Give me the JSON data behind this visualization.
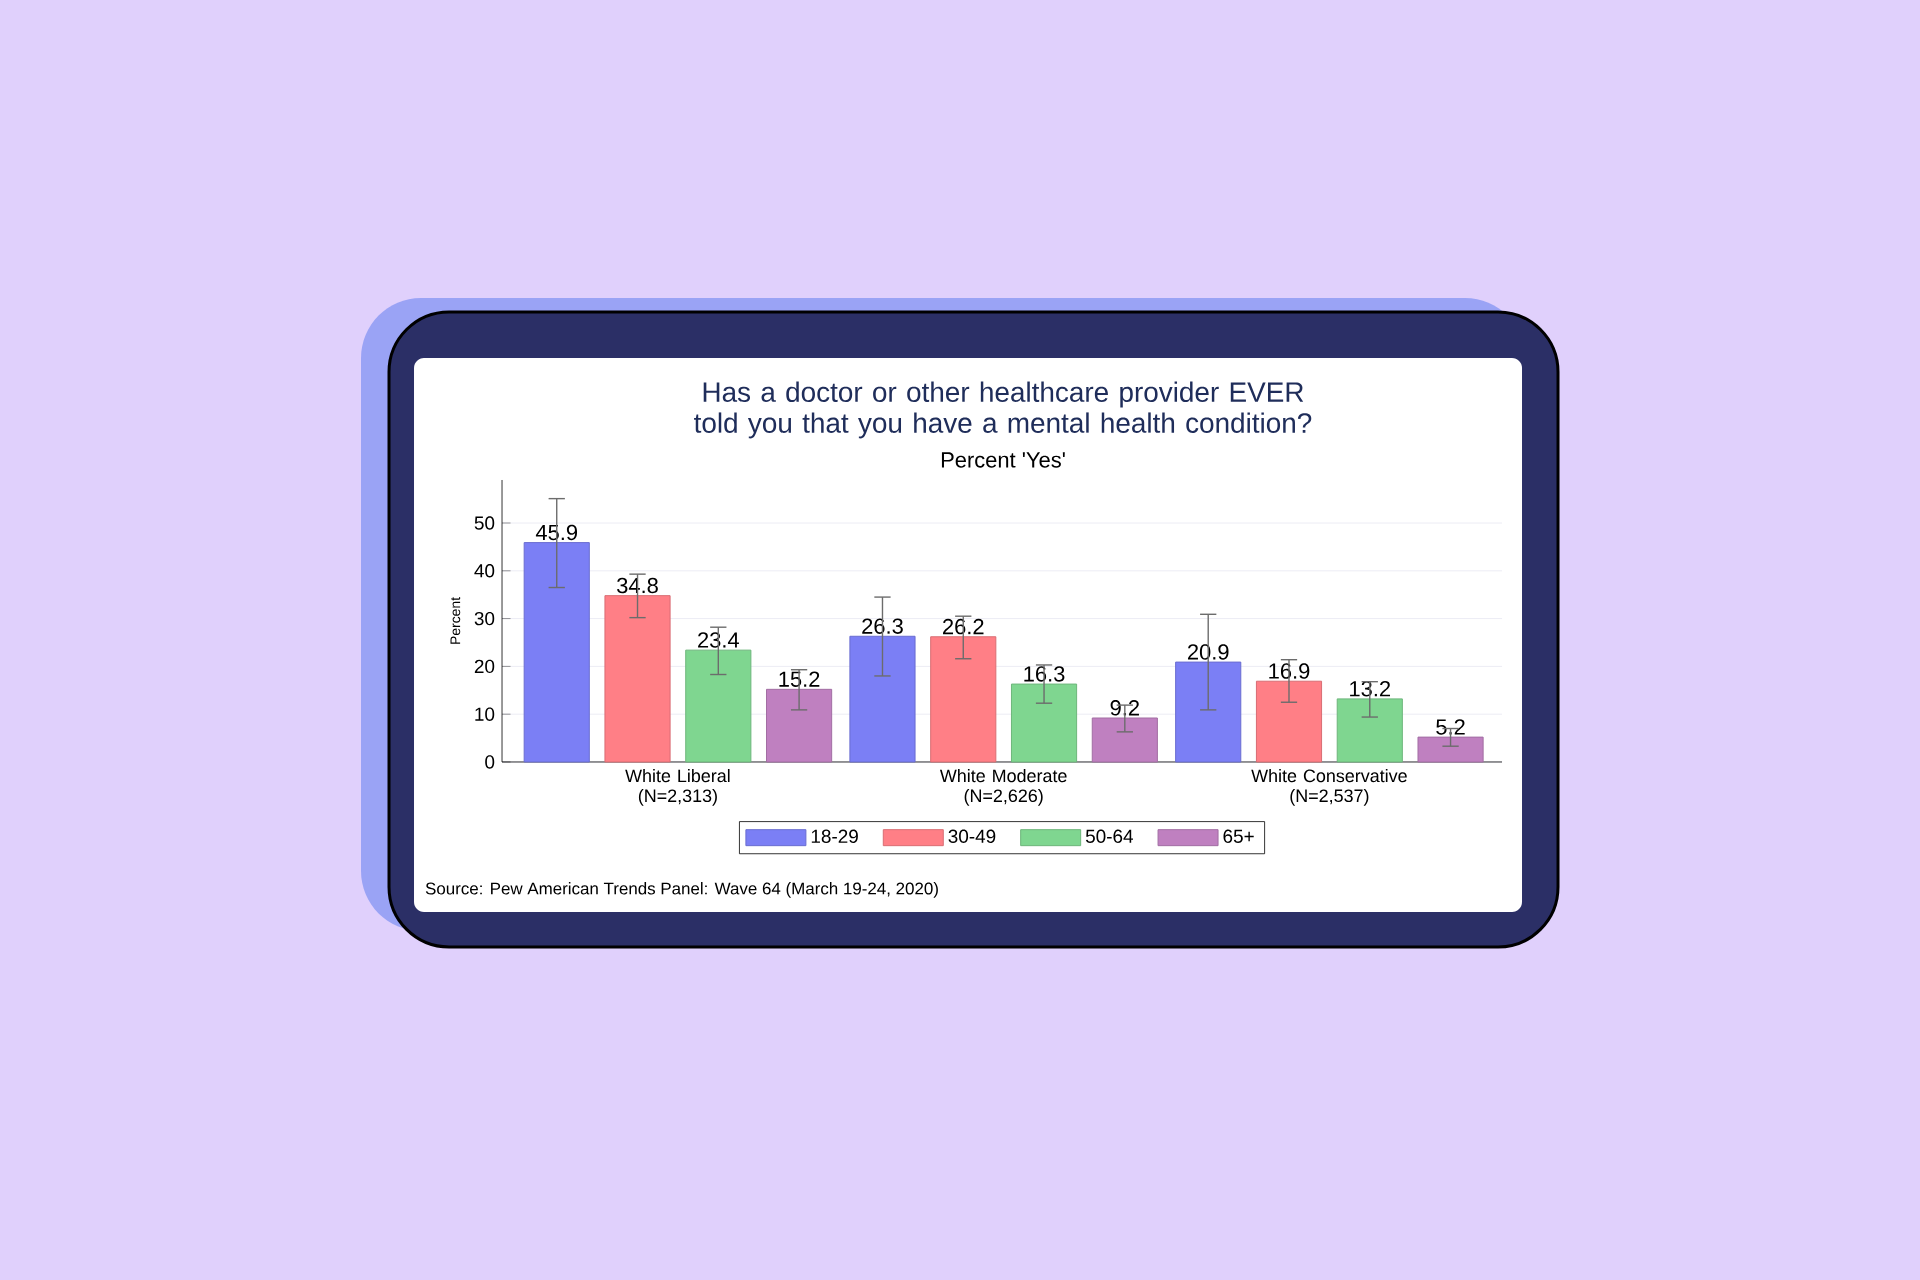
{
  "chart_data": {
    "type": "bar",
    "title": "Has a doctor or other healthcare provider EVER told you that you have a mental health condition?",
    "subtitle": "Percent 'Yes'",
    "ylabel": "Percent",
    "categories": [
      "White Liberal (N=2,313)",
      "White Moderate (N=2,626)",
      "White Conservative (N=2,537)"
    ],
    "series": [
      {
        "name": "18-29",
        "color": "#7b7ff5",
        "values": [
          45.9,
          26.3,
          20.9
        ],
        "errors": [
          [
            36.5,
            55.1
          ],
          [
            18.0,
            34.5
          ],
          [
            10.9,
            30.9
          ]
        ]
      },
      {
        "name": "30-49",
        "color": "#ff7f86",
        "values": [
          34.8,
          26.2,
          16.9
        ],
        "errors": [
          [
            30.2,
            39.3
          ],
          [
            21.6,
            30.5
          ],
          [
            12.5,
            21.4
          ]
        ]
      },
      {
        "name": "50-64",
        "color": "#7fd690",
        "values": [
          23.4,
          16.3,
          13.2
        ],
        "errors": [
          [
            18.3,
            28.2
          ],
          [
            12.3,
            20.3
          ],
          [
            9.4,
            16.8
          ]
        ]
      },
      {
        "name": "65+",
        "color": "#bf80c0",
        "values": [
          15.2,
          9.2,
          5.2
        ],
        "errors": [
          [
            10.9,
            19.3
          ],
          [
            6.3,
            11.9
          ],
          [
            3.3,
            7.0
          ]
        ]
      }
    ],
    "ylim": [
      0,
      59
    ],
    "yticks": [
      0,
      10,
      20,
      30,
      40,
      50
    ],
    "grid": "y",
    "legend": "bottom",
    "data_labels": true,
    "annotations": [
      "Source: Pew American Trends Panel: Wave 64 (March 19-24, 2020)"
    ]
  }
}
